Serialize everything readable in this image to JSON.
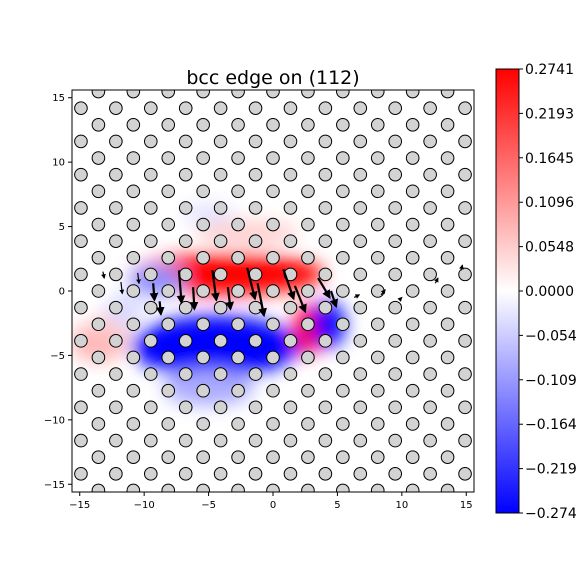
{
  "chart_data": {
    "type": "heatmap",
    "title": "bcc edge on (112)",
    "xlabel": "",
    "ylabel": "",
    "xlim": [
      -15.6,
      15.6
    ],
    "ylim": [
      -15.6,
      15.6
    ],
    "xticks": [
      -15,
      -10,
      -5,
      0,
      5,
      10,
      15
    ],
    "yticks": [
      -15,
      -10,
      -5,
      0,
      5,
      10,
      15
    ],
    "colorbar": {
      "colormap": "bwr",
      "min": -0.2741,
      "max": 0.2741,
      "ticks": [
        {
          "value": 0.2741,
          "label": "0.2741"
        },
        {
          "value": 0.2193,
          "label": "0.2193"
        },
        {
          "value": 0.1645,
          "label": "0.1645"
        },
        {
          "value": 0.1096,
          "label": "0.1096"
        },
        {
          "value": 0.0548,
          "label": "0.0548"
        },
        {
          "value": 0.0,
          "label": "0.0000"
        },
        {
          "value": -0.0548,
          "label": "−0.0548"
        },
        {
          "value": -0.1096,
          "label": "−0.1096"
        },
        {
          "value": -0.1645,
          "label": "−0.1645"
        },
        {
          "value": -0.2193,
          "label": "−0.2193"
        },
        {
          "value": -0.2741,
          "label": "−0.2741"
        }
      ]
    },
    "atoms": {
      "type": "scatter",
      "lattice": {
        "a1": [
          2.71,
          0.0
        ],
        "a2": [
          1.355,
          1.29
        ],
        "origin": [
          0.0,
          0.0
        ]
      },
      "color": "#d3d3d3",
      "edgecolor": "#000000"
    },
    "field": [
      {
        "x": -3.5,
        "y": 1.3,
        "rx": 7.5,
        "ry": 1.6,
        "value": 0.274
      },
      {
        "x": 2.7,
        "y": -3.0,
        "rx": 1.1,
        "ry": 2.0,
        "value": 0.274
      },
      {
        "x": -2.0,
        "y": 4.5,
        "rx": 4.0,
        "ry": 1.0,
        "value": 0.05
      },
      {
        "x": -13.5,
        "y": -4.0,
        "rx": 2.2,
        "ry": 1.5,
        "value": 0.08
      },
      {
        "x": -12.5,
        "y": -2.8,
        "rx": 1.5,
        "ry": 1.2,
        "value": 0.06
      },
      {
        "x": -4.5,
        "y": -4.3,
        "rx": 6.5,
        "ry": 2.4,
        "value": -0.274
      },
      {
        "x": 4.3,
        "y": -2.6,
        "rx": 1.3,
        "ry": 1.8,
        "value": -0.274
      },
      {
        "x": -9.0,
        "y": 0.8,
        "rx": 2.2,
        "ry": 1.2,
        "value": -0.12
      },
      {
        "x": -5.0,
        "y": -7.5,
        "rx": 3.5,
        "ry": 1.4,
        "value": -0.09
      },
      {
        "x": -11.5,
        "y": -1.5,
        "rx": 1.5,
        "ry": 1.3,
        "value": -0.04
      },
      {
        "x": -5.0,
        "y": 6.0,
        "rx": 2.0,
        "ry": 0.8,
        "value": -0.03
      }
    ],
    "displacements": [
      {
        "x": -7.3,
        "y": 1.6,
        "dx": 0.2,
        "dy": -2.5
      },
      {
        "x": -6.2,
        "y": 0.3,
        "dx": 0.1,
        "dy": -1.7
      },
      {
        "x": -4.7,
        "y": 1.6,
        "dx": 0.3,
        "dy": -2.3
      },
      {
        "x": -3.5,
        "y": 0.3,
        "dx": 0.2,
        "dy": -1.7
      },
      {
        "x": -2.0,
        "y": 1.8,
        "dx": 0.6,
        "dy": -2.4
      },
      {
        "x": -1.2,
        "y": 0.6,
        "dx": 0.5,
        "dy": -2.5
      },
      {
        "x": 0.8,
        "y": 1.7,
        "dx": 0.8,
        "dy": -2.3
      },
      {
        "x": 1.7,
        "y": 0.4,
        "dx": 0.8,
        "dy": -2.0
      },
      {
        "x": 3.5,
        "y": 1.0,
        "dx": 0.9,
        "dy": -1.5
      },
      {
        "x": 4.5,
        "y": 0.0,
        "dx": 0.4,
        "dy": -1.2
      },
      {
        "x": -13.2,
        "y": 1.5,
        "dx": 0.1,
        "dy": -0.5
      },
      {
        "x": -11.8,
        "y": 0.7,
        "dx": 0.1,
        "dy": -0.9
      },
      {
        "x": -10.5,
        "y": 1.4,
        "dx": 0.1,
        "dy": -0.8
      },
      {
        "x": -9.3,
        "y": 0.6,
        "dx": 0.1,
        "dy": -1.3
      },
      {
        "x": -8.8,
        "y": -0.8,
        "dx": 0.1,
        "dy": -1.0
      },
      {
        "x": 6.3,
        "y": -0.5,
        "dx": 0.4,
        "dy": 0.2
      },
      {
        "x": 8.4,
        "y": -0.3,
        "dx": 0.3,
        "dy": 0.4
      },
      {
        "x": 9.8,
        "y": -0.7,
        "dx": 0.2,
        "dy": 0.2
      },
      {
        "x": 12.6,
        "y": 0.6,
        "dx": 0.2,
        "dy": 0.4
      },
      {
        "x": 14.6,
        "y": 1.6,
        "dx": 0.1,
        "dy": 0.4
      }
    ]
  }
}
